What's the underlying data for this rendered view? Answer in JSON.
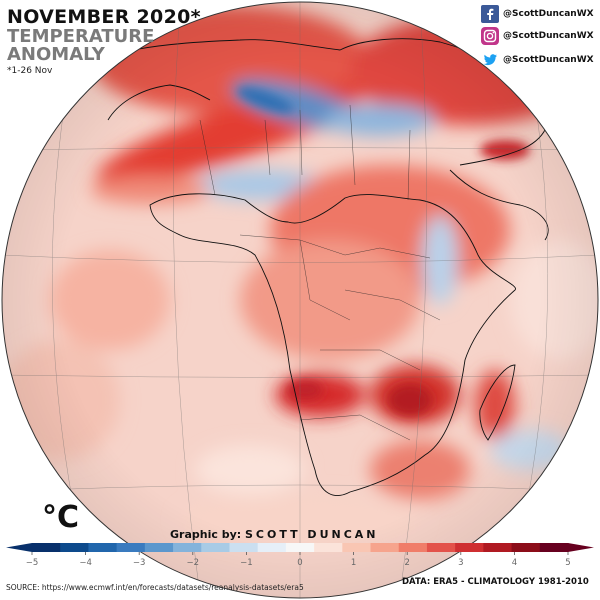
{
  "header": {
    "title": "NOVEMBER 2020*",
    "subtitle_line1": "TEMPERATURE",
    "subtitle_line2": "ANOMALY",
    "note": "*1-26 Nov"
  },
  "social": [
    {
      "icon": "facebook-icon",
      "handle": "@ScottDuncanWX",
      "color": "#3b5998"
    },
    {
      "icon": "instagram-icon",
      "handle": "@ScottDuncanWX",
      "color": "#c1358a"
    },
    {
      "icon": "twitter-icon",
      "handle": "@ScottDuncanWX",
      "color": "#1da1f2"
    }
  ],
  "colorbar": {
    "unit": "°C",
    "ticks": [
      "−5",
      "−4",
      "−3",
      "−2",
      "−1",
      "0",
      "1",
      "2",
      "3",
      "4",
      "5"
    ],
    "min": -5,
    "max": 5,
    "colors": [
      "#08306b",
      "#0d4a8c",
      "#2166ac",
      "#3a7bbf",
      "#5b97cd",
      "#84b3db",
      "#a8cbe6",
      "#cbdff0",
      "#e6eff8",
      "#f7f7f7",
      "#fbe3da",
      "#f9c6b3",
      "#f6a48d",
      "#f07d69",
      "#e3524a",
      "#cf2f31",
      "#b01a22",
      "#8c0d19",
      "#67001f"
    ]
  },
  "credit": {
    "prefix": "Graphic by:",
    "name": "SCOTT DUNCAN"
  },
  "footer": {
    "source": "SOURCE: https://www.ecmwf.int/en/forecasts/datasets/reanalysis-datasets/era5",
    "data": "DATA: ERA5 - CLIMATOLOGY 1981-2010"
  }
}
